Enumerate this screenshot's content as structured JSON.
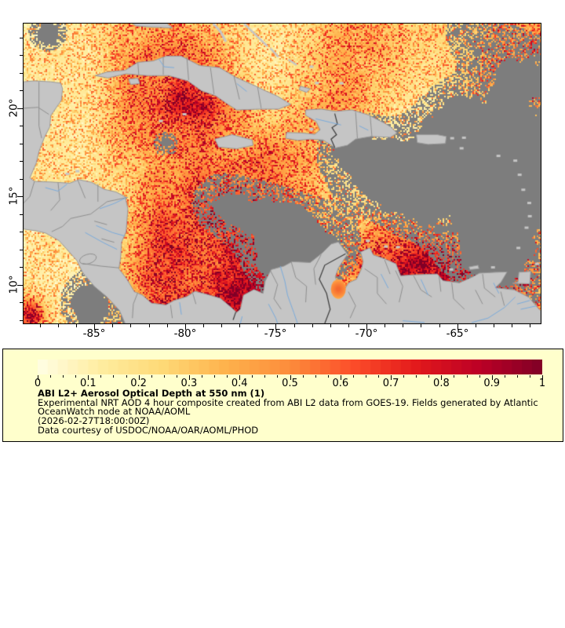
{
  "figure": {
    "map": {
      "extent": {
        "lon_min": -88.9,
        "lon_max": -60.4,
        "lat_min": 7.8,
        "lat_max": 24.8
      },
      "x_ticks": [
        {
          "label": "-85°",
          "value": -85
        },
        {
          "label": "-80°",
          "value": -80
        },
        {
          "label": "-75°",
          "value": -75
        },
        {
          "label": "-70°",
          "value": -70
        },
        {
          "label": "-65°",
          "value": -65
        }
      ],
      "y_ticks": [
        {
          "label": "20°",
          "value": 20
        },
        {
          "label": "15°",
          "value": 15
        },
        {
          "label": "10°",
          "value": 10
        }
      ],
      "minor_tick_interval_deg": 1
    },
    "legend": {
      "background": "#ffffcc",
      "title": "ABI L2+ Aerosol Optical Depth at 550 nm (1)",
      "description_line1": "Experimental NRT AOD 4 hour composite created from ABI L2 data from GOES-19. Fields generated by Atlantic",
      "description_line2": "OceanWatch node at NOAA/AOML",
      "timestamp": "(2026-02-27T18:00:00Z)",
      "credit": "Data courtesy of USDOC/NOAA/OAR/AOML/PHOD",
      "colorbar": {
        "min": 0,
        "max": 1,
        "tick_labels": [
          "0",
          "0.1",
          "0.2",
          "0.3",
          "0.4",
          "0.5",
          "0.6",
          "0.7",
          "0.8",
          "0.9",
          "1"
        ],
        "minor_tick_interval": 0.025,
        "segments": 50
      }
    },
    "colors": {
      "colormap_stops": [
        "#ffffe5",
        "#ffeda0",
        "#fed976",
        "#feb24c",
        "#fd8d3c",
        "#fc4e2a",
        "#e31a1c",
        "#bd0026",
        "#800026"
      ],
      "land": "#c5c5c5",
      "cloud_no_data": "#7d7d7d",
      "coastline": "#999999",
      "admin_border": "#8f8f8f",
      "country_border": "#3c3c3c",
      "river": "#7aabdc",
      "axis": "#000000",
      "plot_border": "#000000"
    }
  },
  "chart_data": {
    "type": "heatmap",
    "title": "ABI L2+ Aerosol Optical Depth at 550 nm (1)",
    "variable": "Aerosol Optical Depth at 550 nm",
    "source_note": "Experimental NRT AOD 4 hour composite created from ABI L2 data from GOES-19. Fields generated by Atlantic OceanWatch node at NOAA/AOML",
    "time": "2026-02-27T18:00:00Z",
    "credit": "Data courtesy of USDOC/NOAA/OAR/AOML/PHOD",
    "colormap": "YlOrRd",
    "colorbar_range": [
      0,
      1
    ],
    "colorbar_ticks": [
      0,
      0.1,
      0.2,
      0.3,
      0.4,
      0.5,
      0.6,
      0.7,
      0.8,
      0.9,
      1
    ],
    "x_axis": {
      "kind": "longitude_deg",
      "tick_values": [
        -85,
        -80,
        -75,
        -70,
        -65
      ],
      "range": [
        -88.9,
        -60.4
      ]
    },
    "y_axis": {
      "kind": "latitude_deg",
      "tick_values": [
        20,
        15,
        10
      ],
      "range": [
        7.8,
        24.8
      ]
    },
    "region": "Caribbean Sea / Gulf of Mexico / northern South America",
    "no_data_color": "#7d7d7d",
    "land_color": "#c5c5c5",
    "field_description": "Speckled yellow-orange-red AOD field over ocean (mostly 0.05-0.45, local maxima near 1.0 along Colombian and Venezuelan coasts); gray = land or no retrieval (cloud)"
  }
}
